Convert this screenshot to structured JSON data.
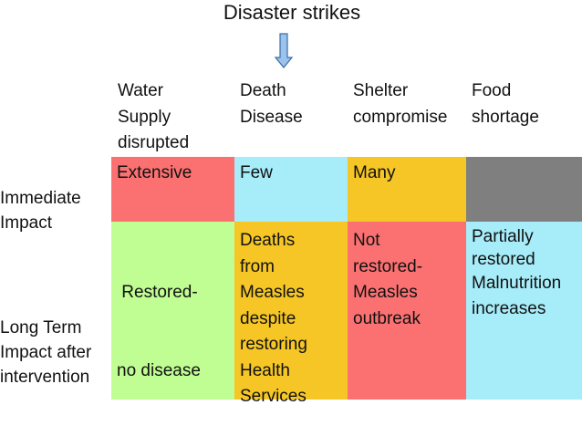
{
  "title": "Disaster strikes",
  "colors": {
    "red": "#fb7171",
    "cyan": "#a6ecf9",
    "yellow": "#f5c625",
    "gray": "#7f7f7f",
    "green": "#c0fd92",
    "arrow_fill": "#9cc3eb",
    "arrow_stroke": "#3a6ea8"
  },
  "columns": [
    {
      "lines": [
        "Water",
        "Supply",
        "disrupted"
      ]
    },
    {
      "lines": [
        "Death",
        "Disease"
      ]
    },
    {
      "lines": [
        "Shelter",
        "compromise"
      ]
    },
    {
      "lines": [
        "Food",
        "shortage"
      ]
    }
  ],
  "rows": [
    {
      "lines": [
        "Immediate",
        "Impact"
      ]
    },
    {
      "lines": [
        "Long Term",
        "Impact after",
        "intervention"
      ]
    }
  ],
  "immediate": [
    {
      "lines": [
        "Extensive"
      ]
    },
    {
      "lines": [
        "Few"
      ]
    },
    {
      "lines": [
        "Many"
      ]
    },
    {
      "lines": []
    }
  ],
  "long_term": [
    {
      "lines": [
        " Restored-",
        "no disease"
      ]
    },
    {
      "lines": [
        "Deaths",
        "from",
        "Measles",
        "despite",
        "restoring",
        "Health",
        "Services"
      ]
    },
    {
      "lines": [
        "Not",
        "restored-",
        "Measles",
        "outbreak"
      ]
    },
    {
      "lines": [
        "Partially",
        "restored",
        "Malnutrition",
        "increases"
      ]
    }
  ]
}
